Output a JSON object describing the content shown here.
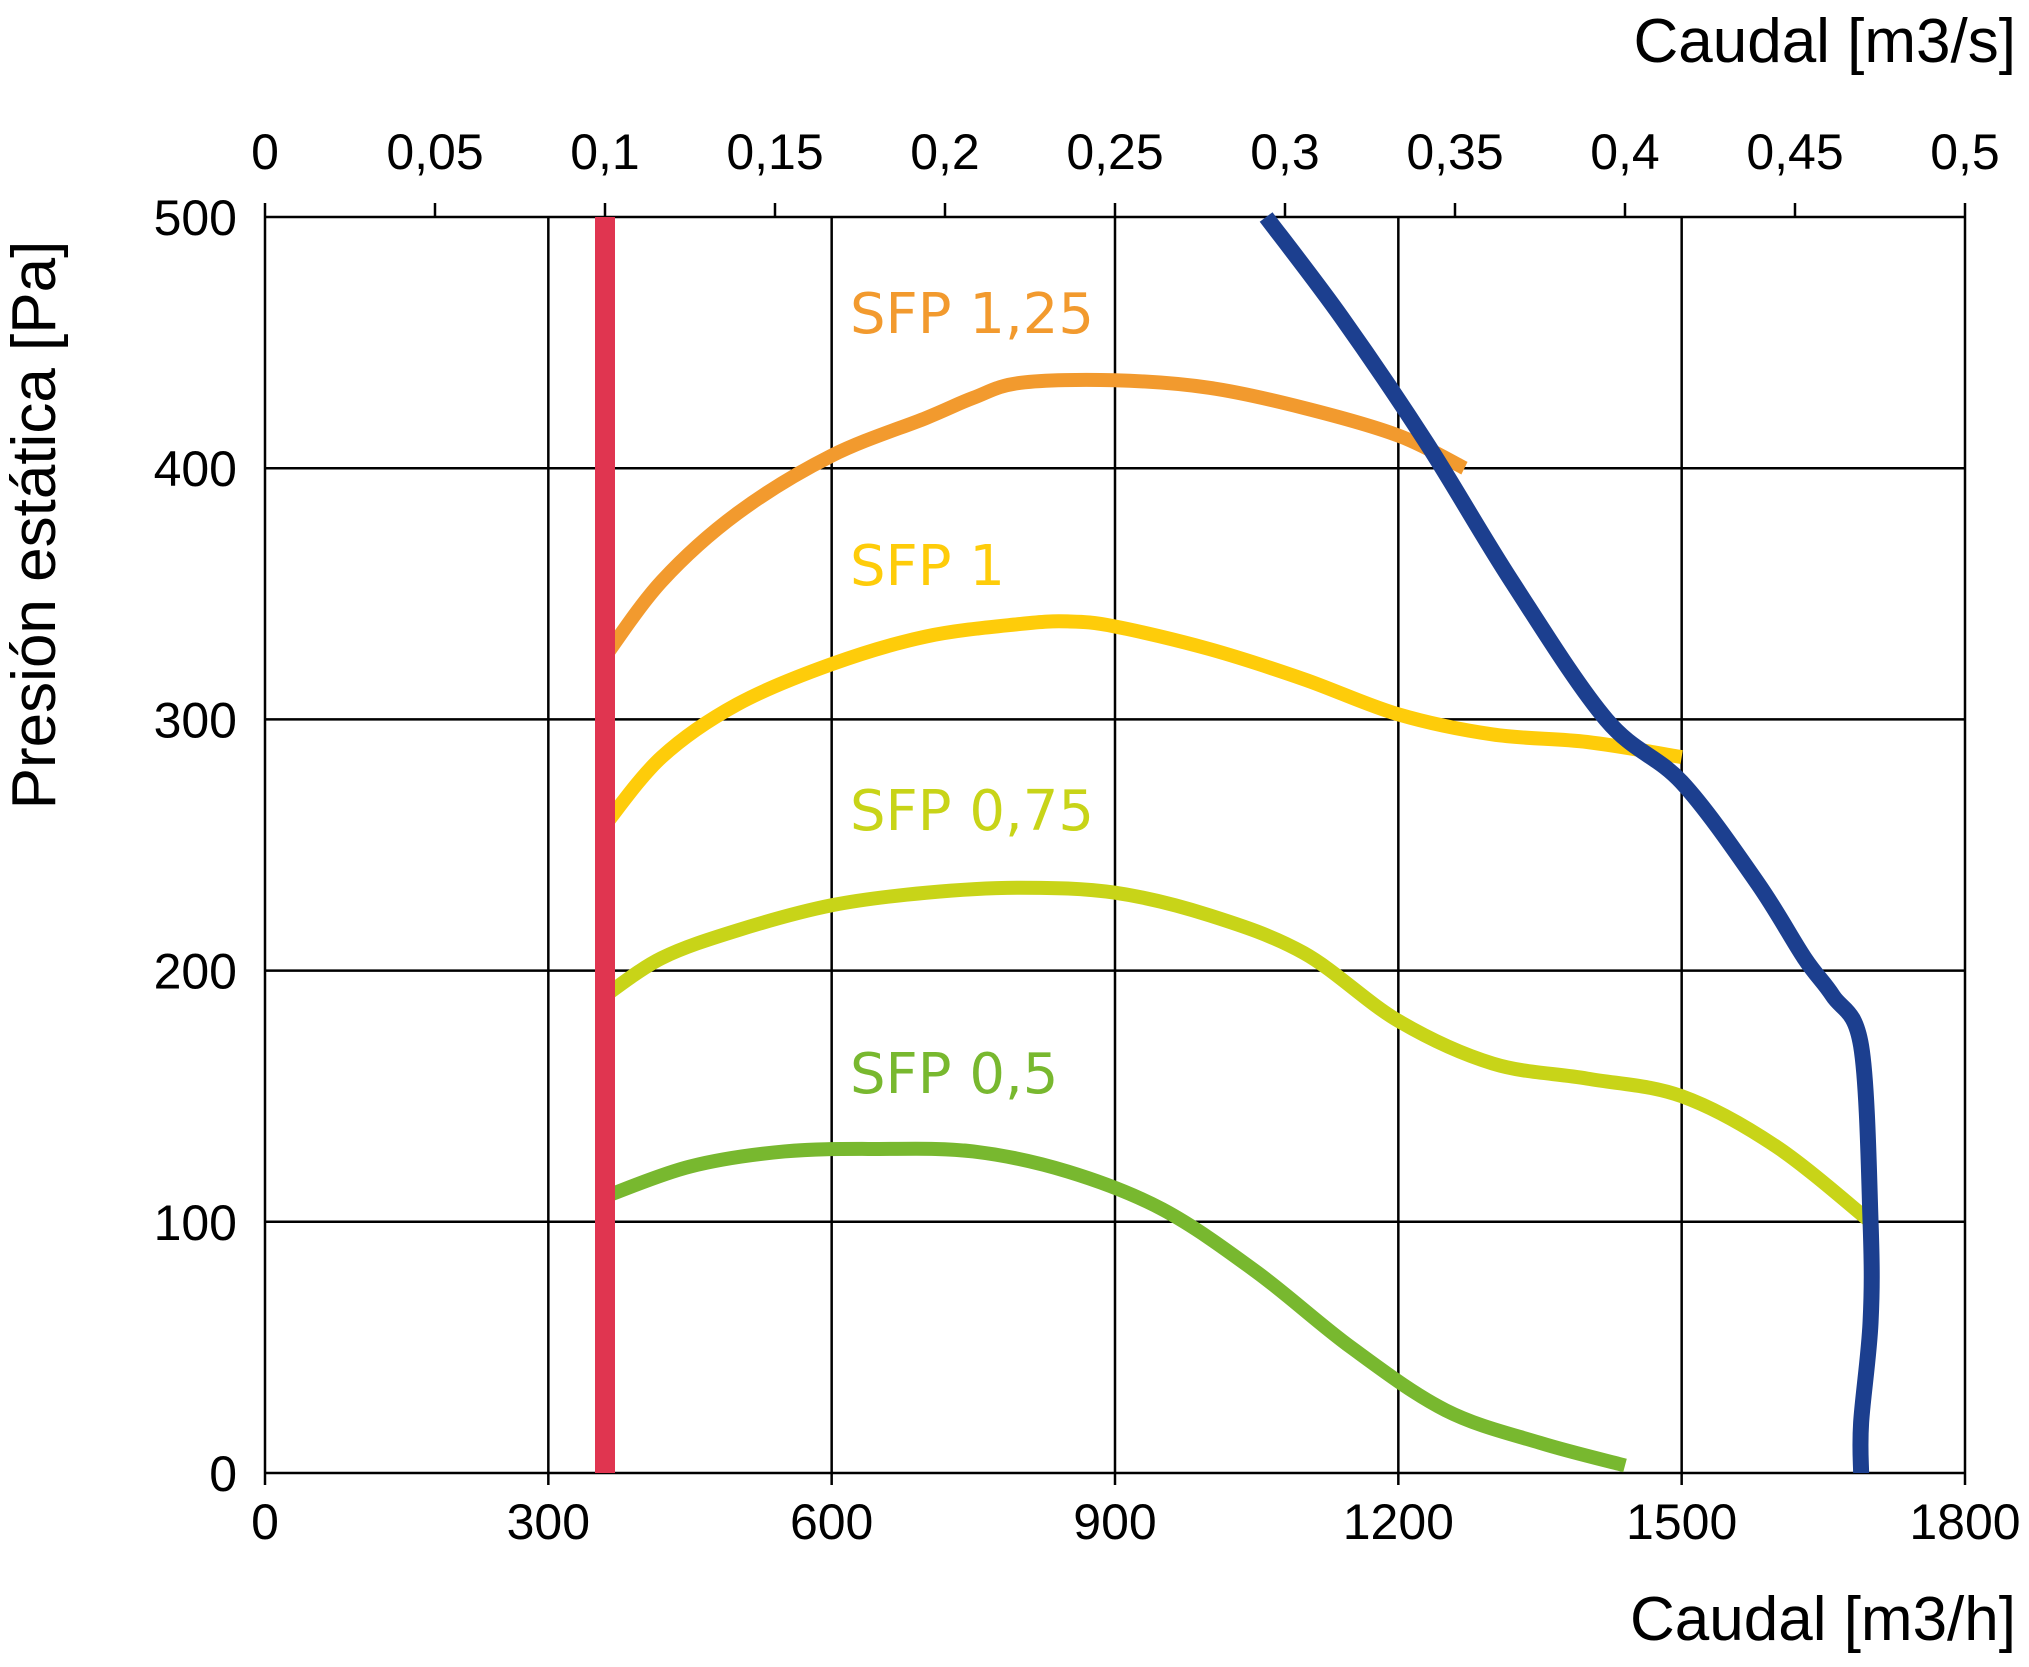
{
  "chart_data": {
    "type": "line",
    "title": "",
    "xlabel": "Caudal [m3/h]",
    "xlabel_top": "Caudal [m3/s]",
    "ylabel": "Presión estática [Pa]",
    "xlim": [
      0,
      1800
    ],
    "ylim": [
      0,
      500
    ],
    "grid": true,
    "x_ticks": [
      0,
      300,
      600,
      900,
      1200,
      1500,
      1800
    ],
    "x_tick_labels": [
      "0",
      "300",
      "600",
      "900",
      "1200",
      "1500",
      "1800"
    ],
    "y_ticks": [
      0,
      100,
      200,
      300,
      400,
      500
    ],
    "y_tick_labels": [
      "0",
      "100",
      "200",
      "300",
      "400",
      "500"
    ],
    "x_top_ticks": [
      0,
      0.05,
      0.1,
      0.15,
      0.2,
      0.25,
      0.3,
      0.35,
      0.4,
      0.45,
      0.5
    ],
    "x_top_tick_labels": [
      "0",
      "0,05",
      "0,1",
      "0,15",
      "0,2",
      "0,25",
      "0,3",
      "0,35",
      "0,4",
      "0,45",
      "0,5"
    ],
    "series": [
      {
        "name": "SFP 1,25",
        "color": "#f29a2e",
        "x": [
          360,
          420,
          500,
          600,
          700,
          750,
          800,
          900,
          1000,
          1100,
          1200,
          1270
        ],
        "y": [
          325,
          355,
          382,
          405,
          420,
          428,
          434,
          435,
          432,
          424,
          413,
          400
        ]
      },
      {
        "name": "SFP 1",
        "color": "#fecc0a",
        "x": [
          360,
          420,
          500,
          600,
          700,
          800,
          850,
          900,
          1000,
          1100,
          1200,
          1300,
          1400,
          1500
        ],
        "y": [
          258,
          285,
          306,
          322,
          333,
          338,
          339,
          337,
          328,
          316,
          302,
          294,
          291,
          285
        ]
      },
      {
        "name": "SFP 0,75",
        "color": "#c8d418",
        "x": [
          360,
          420,
          500,
          600,
          700,
          800,
          900,
          1000,
          1100,
          1200,
          1300,
          1400,
          1500,
          1600,
          1700
        ],
        "y": [
          190,
          205,
          216,
          226,
          231,
          233,
          231,
          222,
          207,
          180,
          163,
          157,
          150,
          130,
          100
        ]
      },
      {
        "name": "SFP 0,5",
        "color": "#78b82f",
        "x": [
          360,
          450,
          550,
          650,
          750,
          850,
          950,
          1050,
          1150,
          1250,
          1350,
          1440
        ],
        "y": [
          110,
          122,
          128,
          129,
          128,
          120,
          105,
          80,
          50,
          25,
          12,
          3
        ]
      },
      {
        "color": "#1c3f8f",
        "x": [
          1060,
          1140,
          1230,
          1320,
          1420,
          1500,
          1580,
          1630,
          1660,
          1690,
          1700,
          1700,
          1690,
          1690
        ],
        "y": [
          500,
          460,
          410,
          355,
          300,
          275,
          235,
          205,
          190,
          170,
          100,
          60,
          20,
          0
        ]
      },
      {
        "color": "#e03550",
        "x": [
          360,
          360
        ],
        "y": [
          0,
          500
        ]
      }
    ]
  }
}
